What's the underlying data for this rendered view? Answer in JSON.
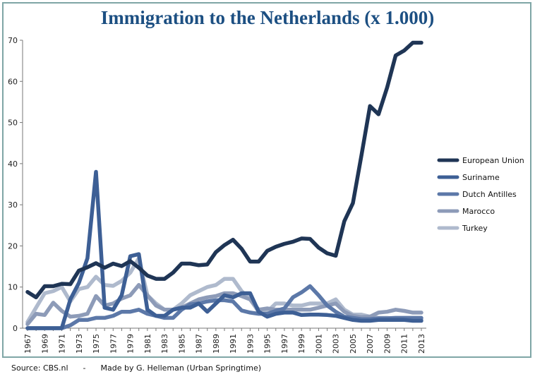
{
  "chart_data": {
    "type": "line",
    "title": "Immigration to the Netherlands (x 1.000)",
    "xlabel": "",
    "ylabel": "",
    "ylim": [
      0,
      70
    ],
    "yticks": [
      0,
      10,
      20,
      30,
      40,
      50,
      60,
      70
    ],
    "x": [
      1967,
      1968,
      1969,
      1970,
      1971,
      1972,
      1973,
      1974,
      1975,
      1976,
      1977,
      1978,
      1979,
      1980,
      1981,
      1982,
      1983,
      1984,
      1985,
      1986,
      1987,
      1988,
      1989,
      1990,
      1991,
      1992,
      1993,
      1994,
      1995,
      1996,
      1997,
      1998,
      1999,
      2000,
      2001,
      2002,
      2003,
      2004,
      2005,
      2006,
      2007,
      2008,
      2009,
      2010,
      2011,
      2012,
      2013
    ],
    "xtick_labels": [
      "1967",
      "1969",
      "1971",
      "1973",
      "1975",
      "1977",
      "1979",
      "1981",
      "1983",
      "1985",
      "1987",
      "1989",
      "1991",
      "1993",
      "1995",
      "1997",
      "1999",
      "2001",
      "2003",
      "2005",
      "2007",
      "2009",
      "2011",
      "2013"
    ],
    "legend_position": "right",
    "series": [
      {
        "name": "European Union",
        "color": "#1f3555",
        "values": [
          8.8,
          7.5,
          10.2,
          10.2,
          10.8,
          10.7,
          14,
          14.8,
          15.8,
          14.7,
          15.7,
          15.1,
          16.3,
          14.7,
          12.8,
          12,
          12,
          13.5,
          15.7,
          15.7,
          15.3,
          15.5,
          18.5,
          20.2,
          21.5,
          19.3,
          16.2,
          16.2,
          18.8,
          19.8,
          20.5,
          21,
          21.8,
          21.7,
          19.6,
          18.2,
          17.6,
          26,
          30.4,
          42,
          54,
          52,
          58.5,
          66.3,
          67.5,
          69.4,
          69.4
        ]
      },
      {
        "name": "Suriname",
        "color": "#3d5f95",
        "values": [
          0,
          0,
          0,
          0,
          0,
          7,
          11,
          17,
          38,
          5,
          4.5,
          8,
          17.5,
          18,
          4.5,
          3,
          3,
          4.5,
          5,
          5,
          6,
          4,
          6,
          8,
          7.5,
          8.5,
          8.5,
          4,
          2.8,
          3.5,
          3.8,
          3.8,
          3.2,
          3.3,
          3.3,
          3.2,
          3,
          2.5,
          2,
          1.8,
          1.8,
          2,
          2,
          2,
          2,
          1.8,
          1.8
        ]
      },
      {
        "name": "Dutch Antilles",
        "color": "#5c78a8",
        "values": [
          0,
          0,
          0,
          0,
          0,
          0.7,
          2,
          2,
          2.5,
          2.5,
          3,
          4,
          4,
          4.5,
          3.5,
          3,
          2.5,
          2.5,
          4.5,
          5.8,
          6,
          6.5,
          6.8,
          6.8,
          6.5,
          4.3,
          3.8,
          3.5,
          3.5,
          4.2,
          4.8,
          7.5,
          8.7,
          10.2,
          8,
          5.5,
          4,
          2.8,
          2.5,
          2.2,
          2.2,
          2.4,
          2.4,
          2.5,
          2.5,
          2.5,
          2.5
        ]
      },
      {
        "name": "Marocco",
        "color": "#8d9bb8",
        "values": [
          1,
          3.5,
          3.2,
          6.2,
          4.2,
          2.8,
          3,
          3.5,
          7.8,
          5.5,
          6,
          7.2,
          8,
          10.5,
          8,
          5.5,
          4.5,
          4.5,
          5,
          6,
          7,
          7.5,
          7.8,
          8.5,
          8.5,
          7.8,
          7,
          4.5,
          4.8,
          4.5,
          4.5,
          4.5,
          4.5,
          4.5,
          5,
          5.5,
          6,
          4,
          3,
          2.7,
          2.8,
          3.8,
          4,
          4.5,
          4.2,
          3.8,
          3.8
        ]
      },
      {
        "name": "Turkey",
        "color": "#afbacd",
        "values": [
          1.5,
          5,
          8.5,
          9,
          10,
          6.5,
          9.5,
          10,
          12.5,
          10.5,
          10.3,
          11.5,
          13.5,
          17,
          8,
          6,
          4.5,
          4.5,
          6,
          8,
          9,
          10,
          10.5,
          12,
          12,
          9,
          7,
          4,
          4,
          6,
          6,
          5.5,
          5.5,
          6,
          6,
          6,
          7,
          4.5,
          3.3,
          3.3,
          2.8,
          2.5,
          2.5,
          2.3,
          2.3,
          2.2,
          2.2
        ]
      }
    ]
  },
  "footer": {
    "source": "Source: CBS.nl",
    "separator": "-",
    "credit": "Made by G. Helleman (Urban Springtime)"
  }
}
